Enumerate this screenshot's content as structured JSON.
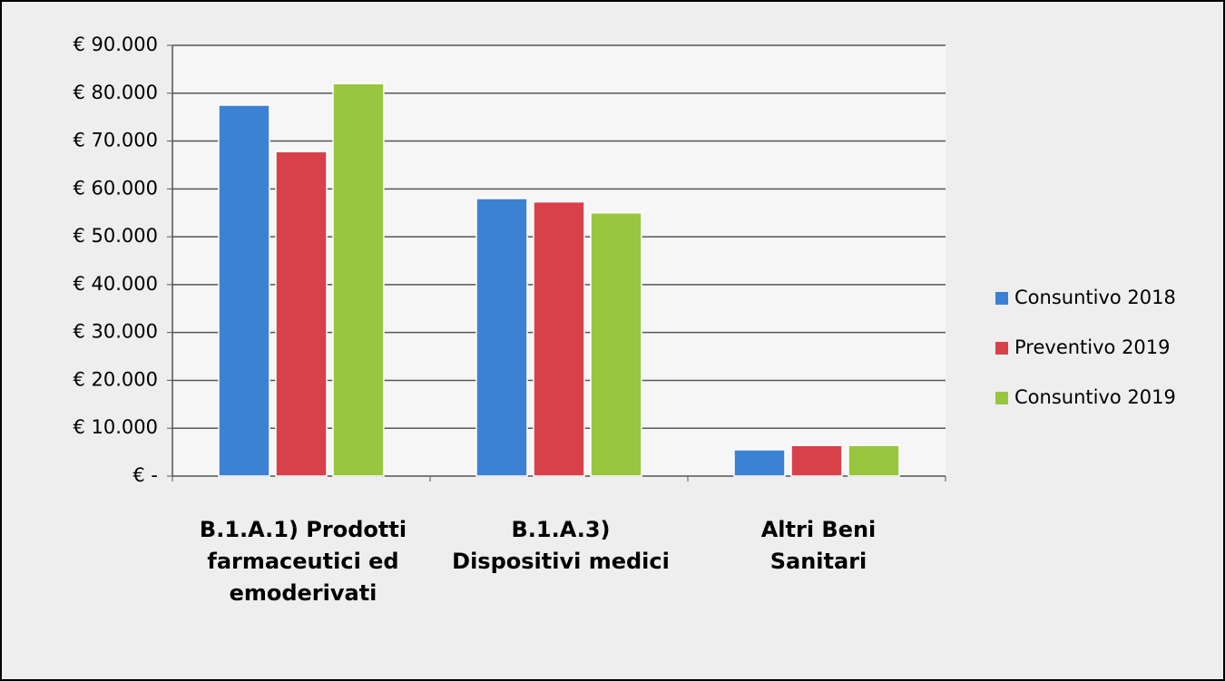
{
  "chart_data": {
    "type": "bar",
    "categories": [
      "B.1.A.1) Prodotti farmaceutici ed emoderivati",
      "B.1.A.3) Dispositivi medici",
      "Altri Beni Sanitari"
    ],
    "series": [
      {
        "name": "Consuntivo 2018",
        "color": "#3b82d4",
        "values": [
          77500,
          58000,
          5500
        ]
      },
      {
        "name": "Preventivo 2019",
        "color": "#d8414a",
        "values": [
          67800,
          57300,
          6400
        ]
      },
      {
        "name": "Consuntivo 2019",
        "color": "#98c63e",
        "values": [
          82000,
          55000,
          6400
        ]
      }
    ],
    "ylim": [
      0,
      90000
    ],
    "yticks": [
      {
        "value": 0,
        "label": "€ -"
      },
      {
        "value": 10000,
        "label": "€ 10.000"
      },
      {
        "value": 20000,
        "label": "€ 20.000"
      },
      {
        "value": 30000,
        "label": "€ 30.000"
      },
      {
        "value": 40000,
        "label": "€ 40.000"
      },
      {
        "value": 50000,
        "label": "€ 50.000"
      },
      {
        "value": 60000,
        "label": "€ 60.000"
      },
      {
        "value": 70000,
        "label": "€ 70.000"
      },
      {
        "value": 80000,
        "label": "€ 80.000"
      },
      {
        "value": 90000,
        "label": "€ 90.000"
      }
    ],
    "grid": true,
    "legend": "right"
  }
}
